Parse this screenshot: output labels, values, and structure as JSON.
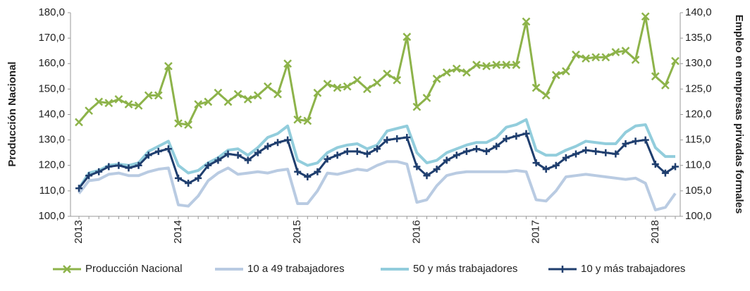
{
  "chart_data": {
    "type": "line",
    "y_label": "Producción Nacional",
    "y2_label": "Empleo en empresas privadas formales",
    "categories": [
      "2013",
      null,
      null,
      null,
      null,
      null,
      null,
      null,
      null,
      null,
      "2014",
      null,
      null,
      null,
      null,
      null,
      null,
      null,
      null,
      null,
      null,
      null,
      "2015",
      null,
      null,
      null,
      null,
      null,
      null,
      null,
      null,
      null,
      null,
      null,
      "2016",
      null,
      null,
      null,
      null,
      null,
      null,
      null,
      null,
      null,
      null,
      null,
      "2017",
      null,
      null,
      null,
      null,
      null,
      null,
      null,
      null,
      null,
      null,
      null,
      "2018",
      null,
      null
    ],
    "ylim": [
      100,
      180
    ],
    "yticks": [
      {
        "value": 100,
        "label": "100,0"
      },
      {
        "value": 110,
        "label": "110,0"
      },
      {
        "value": 120,
        "label": "120,0"
      },
      {
        "value": 130,
        "label": "130,0"
      },
      {
        "value": 140,
        "label": "140,0"
      },
      {
        "value": 150,
        "label": "150,0"
      },
      {
        "value": 160,
        "label": "160,0"
      },
      {
        "value": 170,
        "label": "170,0"
      },
      {
        "value": 180,
        "label": "180,0"
      }
    ],
    "y2lim": [
      100,
      140
    ],
    "y2ticks": [
      {
        "value": 100,
        "label": "100,0"
      },
      {
        "value": 105,
        "label": "105,0"
      },
      {
        "value": 110,
        "label": "110,0"
      },
      {
        "value": 115,
        "label": "115,0"
      },
      {
        "value": 120,
        "label": "120,0"
      },
      {
        "value": 125,
        "label": "125,0"
      },
      {
        "value": 130,
        "label": "130,0"
      },
      {
        "value": 135,
        "label": "135,0"
      },
      {
        "value": 140,
        "label": "140,0"
      }
    ],
    "series": [
      {
        "name": "Producción Nacional",
        "color": "#8db34a",
        "marker": "x",
        "axis": "y",
        "values": [
          137,
          141.5,
          145,
          144.5,
          146,
          144,
          143.5,
          147.5,
          147.5,
          159,
          136.5,
          136,
          144,
          145,
          148.5,
          145,
          148,
          146,
          147.5,
          151,
          148,
          160,
          138,
          137.5,
          148.5,
          152,
          150.5,
          151,
          153.5,
          150,
          152.5,
          156,
          153.5,
          170.5,
          143,
          146.5,
          154,
          156.5,
          158,
          156.5,
          159.5,
          159,
          159.5,
          159.5,
          159.5,
          176.5,
          150.5,
          147.5,
          155.5,
          157,
          163.5,
          162,
          162.5,
          162.5,
          164.5,
          165,
          161.5,
          178.5,
          155,
          151.5,
          161
        ]
      },
      {
        "name": "10 a 49 trabajadores",
        "color": "#b9cbe2",
        "marker": "none",
        "axis": "y2",
        "values": [
          104.5,
          107,
          107.25,
          108.25,
          108.5,
          108,
          108,
          108.75,
          109.25,
          109.5,
          102.25,
          102,
          104,
          107,
          108.5,
          109.5,
          108.25,
          108.5,
          108.75,
          108.5,
          109,
          109.25,
          102.5,
          102.5,
          105,
          108.5,
          108.25,
          108.75,
          109.25,
          109,
          110,
          110.75,
          110.75,
          110.25,
          102.75,
          103.25,
          106,
          108,
          108.5,
          108.75,
          108.75,
          108.75,
          108.75,
          108.75,
          109,
          108.75,
          103.25,
          103,
          105,
          107.75,
          108,
          108.25,
          108,
          107.75,
          107.5,
          107.25,
          107.5,
          106.5,
          101.25,
          101.75,
          104.5
        ]
      },
      {
        "name": "50 y más trabajadores",
        "color": "#92cddc",
        "marker": "none",
        "axis": "y2",
        "values": [
          105.5,
          108.5,
          109,
          110,
          110.25,
          110,
          110.5,
          112.75,
          113.75,
          114.75,
          110,
          108.5,
          109,
          110.5,
          111.5,
          113,
          113.25,
          112,
          113.5,
          115.5,
          116.25,
          117.75,
          111,
          110,
          110.5,
          112.5,
          113.5,
          114,
          114.25,
          113.25,
          114,
          116.75,
          117.25,
          117.75,
          112.5,
          110.5,
          111,
          112.5,
          113.25,
          114,
          114.5,
          114.5,
          115.5,
          117.5,
          118,
          119,
          113,
          112,
          112,
          113,
          113.75,
          114.75,
          114.5,
          114.25,
          114.25,
          116.5,
          117.75,
          118,
          113.5,
          111.75,
          111.75
        ]
      },
      {
        "name": "10 y más trabajadores",
        "color": "#1f3e6e",
        "marker": "plus",
        "axis": "y2",
        "values": [
          105.5,
          108,
          108.75,
          109.75,
          110,
          109.5,
          110,
          112,
          112.75,
          113.25,
          107.5,
          106.5,
          107.5,
          110,
          111,
          112.25,
          112,
          111,
          112.5,
          113.75,
          114.5,
          115,
          108.75,
          107.75,
          108.75,
          111.25,
          112,
          112.75,
          112.75,
          112.25,
          113.25,
          115,
          115.25,
          115.5,
          109.75,
          108,
          109.25,
          111,
          112,
          112.75,
          113.25,
          112.75,
          113.75,
          115.25,
          115.75,
          116.25,
          110.5,
          109.25,
          110,
          111.5,
          112.25,
          113,
          112.75,
          112.5,
          112.25,
          114.25,
          114.75,
          115,
          110.25,
          108.5,
          109.75
        ]
      }
    ]
  }
}
